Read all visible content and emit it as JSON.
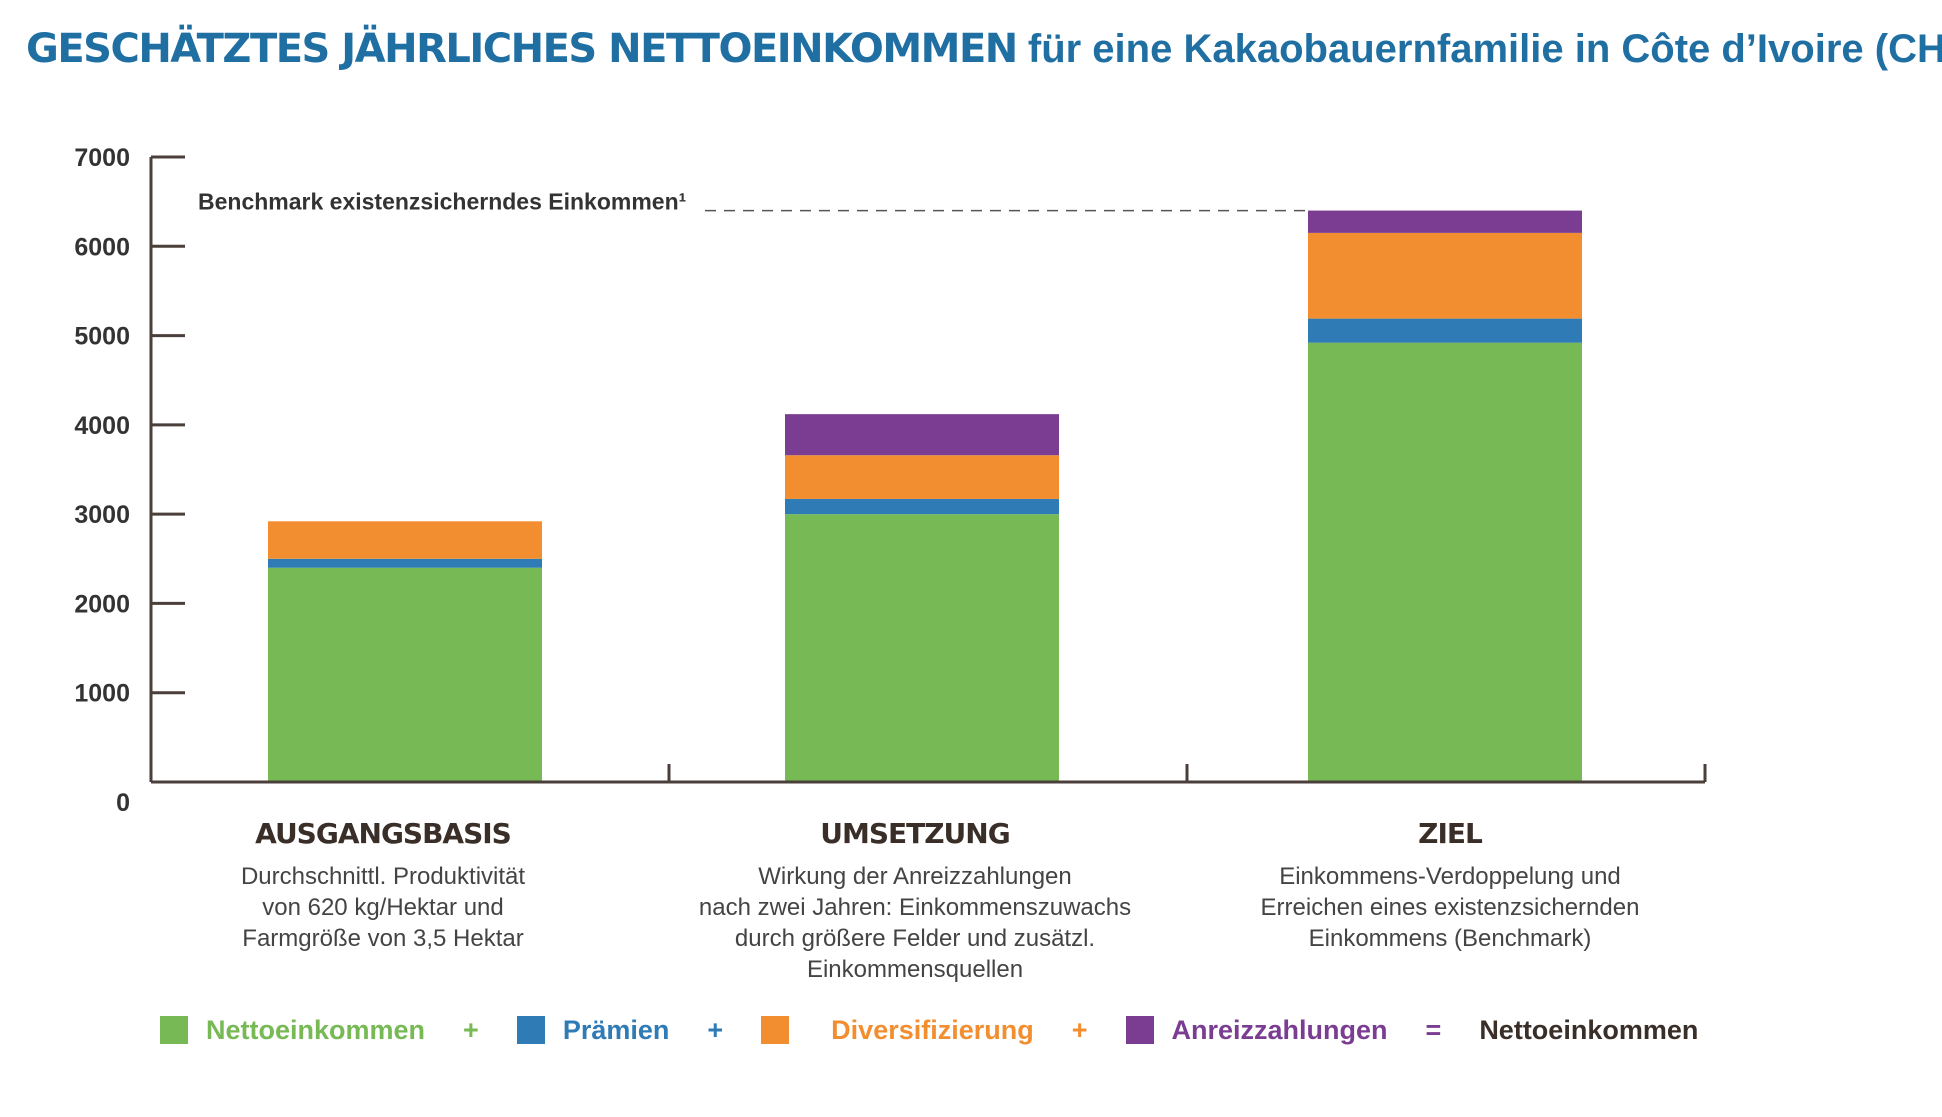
{
  "title": {
    "bold_part": "GESCHÄTZTES JÄHRLICHES NETTOEINKOMMEN",
    "rest_part": "für eine Kakaobauernfamilie in Côte d’Ivoire (CHF)"
  },
  "colors": {
    "title": "#1f6fa3",
    "green": "#77b955",
    "blue": "#2f7bb5",
    "orange": "#f28e2f",
    "purple": "#7a3d91",
    "axis": "#4a3f3a",
    "dark_text": "#3a2e28"
  },
  "chart_data": {
    "type": "bar",
    "stacked": true,
    "categories": [
      "AUSGANGSBASIS",
      "UMSETZUNG",
      "ZIEL"
    ],
    "descriptions": [
      [
        "Durchschnittl. Produktivität",
        "von 620 kg/Hektar und",
        "Farmgröße von 3,5 Hektar"
      ],
      [
        "Wirkung der Anreizzahlungen",
        "nach zwei Jahren: Einkommenszuwachs",
        "durch größere Felder und zusätzl.",
        "Einkommensquellen"
      ],
      [
        "Einkommens-Verdoppelung und",
        "Erreichen eines existenzsichernden",
        "Einkommens (Benchmark)"
      ]
    ],
    "series": [
      {
        "name": "Nettoeinkommen",
        "color": "#77b955",
        "values": [
          2400,
          3000,
          4920
        ]
      },
      {
        "name": "Prämien",
        "color": "#2f7bb5",
        "values": [
          100,
          170,
          270
        ]
      },
      {
        "name": "Diversifizierung",
        "color": "#f28e2f",
        "values": [
          420,
          490,
          960
        ]
      },
      {
        "name": "Anreizzahlungen",
        "color": "#7a3d91",
        "values": [
          0,
          460,
          250
        ]
      }
    ],
    "ylim": [
      0,
      7000
    ],
    "yticks": [
      0,
      1000,
      2000,
      3000,
      4000,
      5000,
      6000,
      7000
    ],
    "benchmark": {
      "label": "Benchmark existenzsicherndes Einkommen¹",
      "value": 6400
    },
    "xlabel": "",
    "ylabel": "",
    "grid": false,
    "legend_position": "bottom"
  },
  "legend": {
    "items": [
      {
        "label": "Nettoeinkommen",
        "color": "#77b955",
        "icon": "green-square"
      },
      {
        "label": "Prämien",
        "color": "#2f7bb5",
        "icon": "blue-square"
      },
      {
        "label": "Diversifizierung",
        "color": "#f28e2f",
        "icon": "orange-square"
      },
      {
        "label": "Anreizzahlungen",
        "color": "#7a3d91",
        "icon": "purple-square"
      }
    ],
    "operators": [
      "+",
      "+",
      "+",
      "="
    ],
    "result_label": "Nettoeinkommen"
  }
}
